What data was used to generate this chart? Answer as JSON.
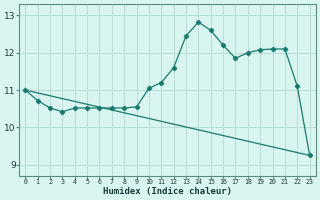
{
  "xlabel": "Humidex (Indice chaleur)",
  "bg_color": "#d9f5f0",
  "grid_color": "#b8ddd8",
  "line_color": "#1a7a6e",
  "xlim": [
    -0.5,
    23.5
  ],
  "ylim": [
    8.7,
    13.3
  ],
  "yticks": [
    9,
    10,
    11,
    12,
    13
  ],
  "xticks": [
    0,
    1,
    2,
    3,
    4,
    5,
    6,
    7,
    8,
    9,
    10,
    11,
    12,
    13,
    14,
    15,
    16,
    17,
    18,
    19,
    20,
    21,
    22,
    23
  ],
  "line1_x": [
    0,
    1,
    2,
    3,
    4,
    5,
    6,
    7,
    8,
    9,
    10,
    11,
    12,
    13,
    14,
    15,
    16,
    17,
    18,
    19,
    20,
    21,
    22,
    23
  ],
  "line1_y": [
    11.0,
    10.72,
    10.52,
    10.42,
    10.52,
    10.52,
    10.52,
    10.52,
    10.52,
    10.55,
    11.05,
    11.2,
    11.6,
    12.45,
    12.82,
    12.6,
    12.2,
    11.85,
    12.0,
    12.08,
    12.1,
    12.1,
    11.1,
    9.25
  ],
  "line2_x": [
    0,
    23
  ],
  "line2_y": [
    11.0,
    9.25
  ]
}
